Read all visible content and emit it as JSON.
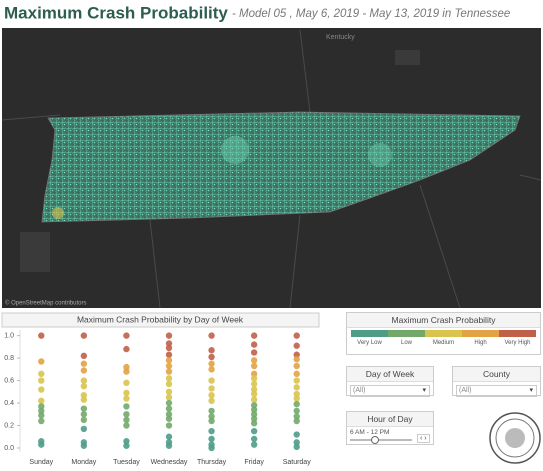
{
  "header": {
    "title": "Maximum Crash Probability",
    "subtitle": "- Model 05 ,  May 6, 2019 - May 13, 2019 in Tennessee"
  },
  "map": {
    "labels": [
      "Kentucky"
    ],
    "attribution": "© OpenStreetMap contributors"
  },
  "chart_data": {
    "type": "strip",
    "title": "Maximum Crash Probability by Day of Week",
    "categories": [
      "Sunday",
      "Monday",
      "Tuesday",
      "Wednesday",
      "Thursday",
      "Friday",
      "Saturday"
    ],
    "values": [
      [
        1.0,
        0.77,
        0.66,
        0.6,
        0.52,
        0.42,
        0.37,
        0.33,
        0.29,
        0.24,
        0.06,
        0.03
      ],
      [
        1.0,
        0.82,
        0.75,
        0.69,
        0.6,
        0.55,
        0.47,
        0.43,
        0.35,
        0.3,
        0.25,
        0.17,
        0.05,
        0.02
      ],
      [
        1.0,
        0.88,
        0.72,
        0.68,
        0.58,
        0.49,
        0.44,
        0.37,
        0.3,
        0.25,
        0.2,
        0.06,
        0.02
      ],
      [
        1.0,
        0.93,
        0.89,
        0.83,
        0.78,
        0.73,
        0.68,
        0.62,
        0.57,
        0.5,
        0.45,
        0.4,
        0.35,
        0.3,
        0.26,
        0.2,
        0.1,
        0.05,
        0.02
      ],
      [
        1.0,
        0.87,
        0.81,
        0.75,
        0.7,
        0.6,
        0.53,
        0.47,
        0.42,
        0.33,
        0.28,
        0.24,
        0.15,
        0.08,
        0.03,
        0.0
      ],
      [
        1.0,
        0.92,
        0.85,
        0.78,
        0.73,
        0.66,
        0.62,
        0.57,
        0.52,
        0.48,
        0.43,
        0.38,
        0.34,
        0.3,
        0.26,
        0.22,
        0.15,
        0.08,
        0.03
      ],
      [
        1.0,
        0.91,
        0.83,
        0.79,
        0.73,
        0.66,
        0.6,
        0.54,
        0.48,
        0.44,
        0.39,
        0.33,
        0.28,
        0.24,
        0.12,
        0.05,
        0.01
      ]
    ],
    "colors": [
      [
        "#c0604a",
        "#e3a243",
        "#d9c44e",
        "#d9c44e",
        "#d9c44e",
        "#d9c44e",
        "#72a86a",
        "#72a86a",
        "#72a86a",
        "#72a86a",
        "#4f9c88",
        "#4f9c88"
      ],
      [
        "#c0604a",
        "#c0604a",
        "#e3a243",
        "#e3a243",
        "#d9c44e",
        "#d9c44e",
        "#d9c44e",
        "#d9c44e",
        "#72a86a",
        "#72a86a",
        "#72a86a",
        "#4f9c88",
        "#4f9c88",
        "#4f9c88"
      ],
      [
        "#c0604a",
        "#c0604a",
        "#e3a243",
        "#e3a243",
        "#d9c44e",
        "#d9c44e",
        "#d9c44e",
        "#72a86a",
        "#72a86a",
        "#72a86a",
        "#72a86a",
        "#4f9c88",
        "#4f9c88"
      ],
      [
        "#c0604a",
        "#c0604a",
        "#c0604a",
        "#c0604a",
        "#e3a243",
        "#e3a243",
        "#e3a243",
        "#d9c44e",
        "#d9c44e",
        "#d9c44e",
        "#d9c44e",
        "#72a86a",
        "#72a86a",
        "#72a86a",
        "#72a86a",
        "#72a86a",
        "#4f9c88",
        "#4f9c88",
        "#4f9c88"
      ],
      [
        "#c0604a",
        "#c0604a",
        "#c0604a",
        "#e3a243",
        "#e3a243",
        "#d9c44e",
        "#d9c44e",
        "#d9c44e",
        "#d9c44e",
        "#72a86a",
        "#72a86a",
        "#72a86a",
        "#4f9c88",
        "#4f9c88",
        "#4f9c88",
        "#4f9c88"
      ],
      [
        "#c0604a",
        "#c0604a",
        "#c0604a",
        "#e3a243",
        "#e3a243",
        "#e3a243",
        "#d9c44e",
        "#d9c44e",
        "#d9c44e",
        "#d9c44e",
        "#d9c44e",
        "#72a86a",
        "#72a86a",
        "#72a86a",
        "#72a86a",
        "#72a86a",
        "#4f9c88",
        "#4f9c88",
        "#4f9c88"
      ],
      [
        "#c0604a",
        "#c0604a",
        "#c0604a",
        "#e3a243",
        "#e3a243",
        "#e3a243",
        "#d9c44e",
        "#d9c44e",
        "#d9c44e",
        "#d9c44e",
        "#72a86a",
        "#72a86a",
        "#72a86a",
        "#72a86a",
        "#4f9c88",
        "#4f9c88",
        "#4f9c88"
      ]
    ],
    "ylim": [
      0,
      1.05
    ],
    "yticks": [
      {
        "value": 0,
        "label": "0.0"
      },
      {
        "value": 0.2,
        "label": "0.2"
      },
      {
        "value": 0.4,
        "label": "0.4"
      },
      {
        "value": 0.6,
        "label": "0.6"
      },
      {
        "value": 0.8,
        "label": "0.8"
      },
      {
        "value": 1,
        "label": "1.0"
      }
    ]
  },
  "legend": {
    "title": "Maximum Crash Probability",
    "levels": [
      {
        "label": "Very Low",
        "color": "#4f9c88"
      },
      {
        "label": "Low",
        "color": "#72a86a"
      },
      {
        "label": "Medium",
        "color": "#d9c44e"
      },
      {
        "label": "High",
        "color": "#e3a243"
      },
      {
        "label": "Very High",
        "color": "#c0604a"
      }
    ]
  },
  "filters": {
    "day": {
      "label": "Day of Week",
      "value": "(All)"
    },
    "county": {
      "label": "County",
      "value": "(All)"
    },
    "hour": {
      "label": "Hour of Day",
      "value": "6 AM - 12 PM"
    }
  }
}
